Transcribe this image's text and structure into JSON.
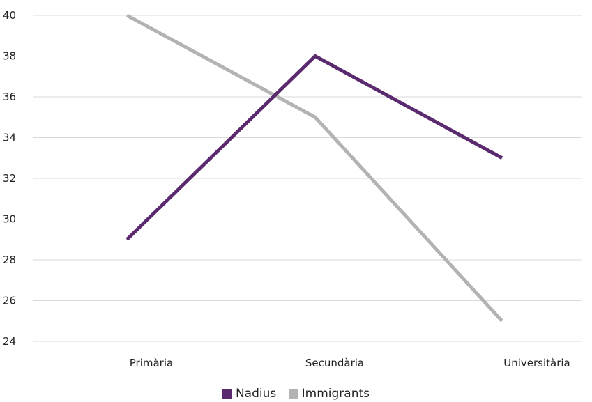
{
  "chart_data": {
    "type": "line",
    "categories": [
      "Primària",
      "Secundària",
      "Universitària"
    ],
    "series": [
      {
        "name": "Nadius",
        "values": [
          29,
          38,
          33
        ],
        "color": "#5b2a6e"
      },
      {
        "name": "Immigrants",
        "values": [
          40,
          35,
          25
        ],
        "color": "#b3b3b3"
      }
    ],
    "y_ticks": [
      "24",
      "26",
      "28",
      "30",
      "32",
      "34",
      "36",
      "38",
      "40"
    ],
    "ylim": [
      24,
      40
    ],
    "grid": true,
    "legend_position": "bottom-center"
  }
}
